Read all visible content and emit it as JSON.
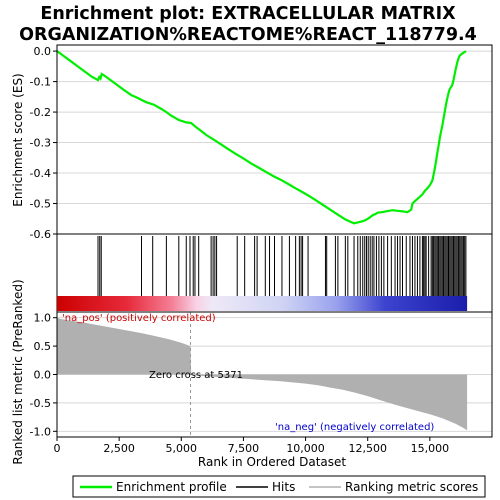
{
  "colors": {
    "enrichment_line": "#00ee00",
    "hits": "#000000",
    "ranking_fill": "#b0b0b0",
    "pos_label": "#cc0000",
    "neg_label": "#0000cc",
    "grid": "#d8d8d8"
  },
  "chart_data": [
    {
      "type": "line",
      "title_line1": "Enrichment plot: EXTRACELLULAR MATRIX",
      "title_line2": "ORGANIZATION%REACTOME%REACT_118779.4",
      "ylabel": "Enrichment score (ES)",
      "xlim": [
        0,
        17500
      ],
      "ylim": [
        -0.6,
        0.02
      ],
      "yticks": [
        "0.0",
        "-0.1",
        "-0.2",
        "-0.3",
        "-0.4",
        "-0.5",
        "-0.6"
      ],
      "ytick_values": [
        0.0,
        -0.1,
        -0.2,
        -0.3,
        -0.4,
        -0.5,
        -0.6
      ],
      "grid": true,
      "series": [
        {
          "x": [
            0,
            200,
            500,
            800,
            1100,
            1400,
            1650,
            1700,
            1750,
            1800,
            1900,
            2100,
            2400,
            2700,
            3000,
            3200,
            3400,
            3600,
            3900,
            4200,
            4400,
            4600,
            4900,
            5200,
            5400,
            5600,
            5800,
            6000,
            6300,
            6600,
            6900,
            7200,
            7500,
            7800,
            8100,
            8400,
            8700,
            9000,
            9300,
            9600,
            9900,
            10200,
            10500,
            10800,
            11100,
            11400,
            11600,
            11800,
            11950,
            12100,
            12300,
            12400,
            12500,
            12600,
            12700,
            12800,
            12900,
            13100,
            13300,
            13500,
            13700,
            13900,
            14100,
            14250,
            14300,
            14400,
            14500,
            14700,
            14800,
            14900,
            15000,
            15100,
            15150,
            15200,
            15250,
            15300,
            15350,
            15400,
            15450,
            15500,
            15550,
            15600,
            15650,
            15700,
            15750,
            15800,
            15900,
            15950,
            16000,
            16050,
            16100,
            16150,
            16200,
            16300,
            16400,
            16450
          ],
          "y": [
            0.0,
            -0.012,
            -0.03,
            -0.048,
            -0.066,
            -0.084,
            -0.095,
            -0.085,
            -0.09,
            -0.075,
            -0.08,
            -0.092,
            -0.11,
            -0.128,
            -0.145,
            -0.152,
            -0.16,
            -0.168,
            -0.176,
            -0.19,
            -0.2,
            -0.212,
            -0.226,
            -0.234,
            -0.236,
            -0.25,
            -0.262,
            -0.275,
            -0.29,
            -0.306,
            -0.322,
            -0.338,
            -0.352,
            -0.368,
            -0.382,
            -0.396,
            -0.41,
            -0.422,
            -0.436,
            -0.45,
            -0.464,
            -0.478,
            -0.494,
            -0.51,
            -0.526,
            -0.542,
            -0.552,
            -0.56,
            -0.565,
            -0.562,
            -0.558,
            -0.555,
            -0.55,
            -0.545,
            -0.538,
            -0.535,
            -0.53,
            -0.528,
            -0.525,
            -0.522,
            -0.524,
            -0.526,
            -0.528,
            -0.52,
            -0.5,
            -0.492,
            -0.485,
            -0.47,
            -0.458,
            -0.45,
            -0.44,
            -0.425,
            -0.405,
            -0.385,
            -0.36,
            -0.335,
            -0.31,
            -0.285,
            -0.265,
            -0.245,
            -0.222,
            -0.198,
            -0.175,
            -0.155,
            -0.138,
            -0.125,
            -0.112,
            -0.095,
            -0.075,
            -0.055,
            -0.038,
            -0.025,
            -0.015,
            -0.008,
            -0.003,
            0.0
          ]
        }
      ]
    },
    {
      "type": "bar",
      "subtype": "hits",
      "xlim": [
        0,
        17500
      ],
      "hits": [
        1650,
        1720,
        1780,
        3400,
        3850,
        4400,
        4900,
        5200,
        5350,
        5480,
        5550,
        5700,
        6200,
        6280,
        6350,
        6420,
        7250,
        7550,
        7950,
        8050,
        8380,
        8550,
        8750,
        9050,
        9350,
        9600,
        9750,
        9820,
        9880,
        10100,
        10800,
        10850,
        11200,
        11300,
        11600,
        11700,
        11950,
        12100,
        12200,
        12300,
        12380,
        12450,
        12520,
        12600,
        12680,
        12750,
        12850,
        12950,
        13050,
        13150,
        13300,
        13450,
        13600,
        13700,
        13800,
        13900,
        14050,
        14200,
        14300,
        14400,
        14500,
        14600,
        14700,
        14750,
        14800,
        14850,
        14950,
        15050,
        15100,
        15150,
        15200,
        15250,
        15300,
        15350,
        15400,
        15450,
        15500,
        15550,
        15600,
        15650,
        15700,
        15750,
        15800,
        15850,
        15900,
        15950,
        16000,
        16050,
        16100,
        16150,
        16200,
        16250,
        16300,
        16350,
        16400,
        16450
      ]
    },
    {
      "type": "area",
      "subtype": "ranking_metric",
      "ylabel": "Ranked list metric (PreRanked)",
      "xlabel": "Rank in Ordered Dataset",
      "xlim": [
        0,
        17500
      ],
      "ylim": [
        -1.1,
        1.1
      ],
      "yticks": [
        "1.0",
        "0.5",
        "0.0",
        "-0.5",
        "-1.0"
      ],
      "ytick_values": [
        1.0,
        0.5,
        0.0,
        -0.5,
        -1.0
      ],
      "xticks": [
        "0",
        "2,500",
        "5,000",
        "7,500",
        "10,000",
        "12,500",
        "15,000"
      ],
      "xtick_values": [
        0,
        2500,
        5000,
        7500,
        10000,
        12500,
        15000
      ],
      "x": [
        0,
        100,
        500,
        1000,
        1500,
        2000,
        2500,
        3000,
        3500,
        4000,
        4500,
        5000,
        5371,
        5400,
        6000,
        7000,
        8000,
        9000,
        10000,
        10500,
        11000,
        11500,
        12000,
        12500,
        13000,
        13500,
        14000,
        14500,
        15000,
        15500,
        16000,
        16300,
        16500
      ],
      "y": [
        1.0,
        0.98,
        0.95,
        0.92,
        0.88,
        0.84,
        0.8,
        0.76,
        0.72,
        0.67,
        0.62,
        0.56,
        0.5,
        -0.01,
        -0.03,
        -0.06,
        -0.09,
        -0.12,
        -0.16,
        -0.19,
        -0.23,
        -0.27,
        -0.32,
        -0.38,
        -0.45,
        -0.52,
        -0.58,
        -0.64,
        -0.7,
        -0.77,
        -0.86,
        -0.93,
        -0.98
      ],
      "zero_cross": 5371,
      "zero_cross_label": "Zero cross at 5371",
      "pos_label": "'na_pos' (positively correlated)",
      "neg_label": "'na_neg' (negatively correlated)"
    }
  ],
  "legend": {
    "placement": "bottom",
    "items": [
      {
        "label": "Enrichment profile",
        "kind": "line",
        "color": "#00ee00"
      },
      {
        "label": "Hits",
        "kind": "line",
        "color": "#000000"
      },
      {
        "label": "Ranking metric scores",
        "kind": "line",
        "color": "#b0b0b0"
      }
    ]
  }
}
